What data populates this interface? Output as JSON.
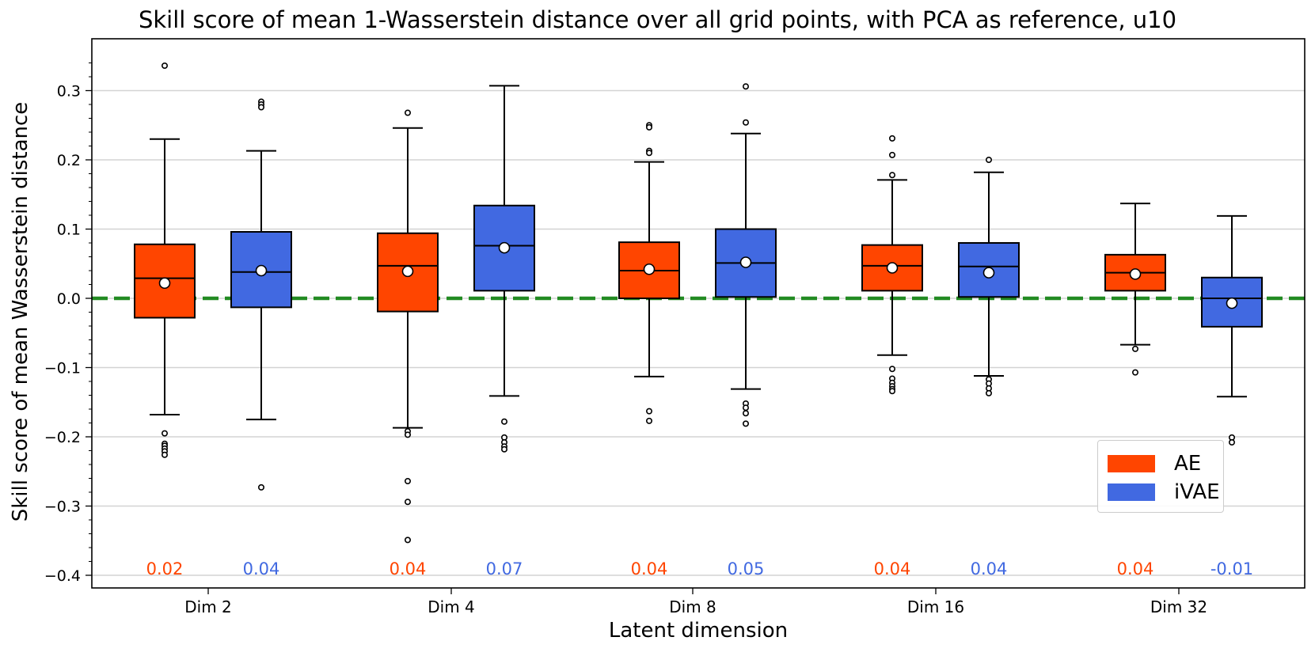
{
  "chart_data": {
    "type": "box",
    "title": "Skill score of mean 1-Wasserstein distance over all grid points, with PCA as reference, u10",
    "xlabel": "Latent dimension",
    "ylabel": "Skill score of mean Wasserstein distance",
    "ylim": [
      -0.415,
      0.37
    ],
    "yticks": [
      -0.4,
      -0.3,
      -0.2,
      -0.1,
      0.0,
      0.1,
      0.2,
      0.3
    ],
    "ytick_labels": [
      "−0.4",
      "−0.3",
      "−0.2",
      "−0.1",
      "0.0",
      "0.1",
      "0.2",
      "0.3"
    ],
    "categories": [
      "Dim 2",
      "Dim 4",
      "Dim 8",
      "Dim 16",
      "Dim 32"
    ],
    "grid": "horizontal",
    "reference_line": {
      "y": 0.0,
      "color": "#228b22",
      "style": "dashed"
    },
    "legend_position": "lower-right",
    "series": [
      {
        "name": "AE",
        "color": "#ff4500",
        "boxes": [
          {
            "q1": -0.028,
            "median": 0.029,
            "q3": 0.078,
            "whisker_low": -0.168,
            "whisker_high": 0.23,
            "mean": 0.022,
            "outliers": [
              0.336,
              -0.195,
              -0.21,
              -0.213,
              -0.217,
              -0.221,
              -0.226
            ]
          },
          {
            "q1": -0.019,
            "median": 0.047,
            "q3": 0.094,
            "whisker_low": -0.187,
            "whisker_high": 0.246,
            "mean": 0.039,
            "outliers": [
              0.268,
              -0.192,
              -0.197,
              -0.264,
              -0.294,
              -0.349
            ]
          },
          {
            "q1": 0.0,
            "median": 0.04,
            "q3": 0.081,
            "whisker_low": -0.113,
            "whisker_high": 0.197,
            "mean": 0.042,
            "outliers": [
              0.25,
              0.247,
              0.213,
              0.21,
              -0.163,
              -0.177
            ]
          },
          {
            "q1": 0.011,
            "median": 0.047,
            "q3": 0.077,
            "whisker_low": -0.082,
            "whisker_high": 0.171,
            "mean": 0.044,
            "outliers": [
              0.231,
              0.207,
              0.178,
              -0.102,
              -0.116,
              -0.122,
              -0.127,
              -0.131,
              -0.134
            ]
          },
          {
            "q1": 0.011,
            "median": 0.037,
            "q3": 0.063,
            "whisker_low": -0.067,
            "whisker_high": 0.137,
            "mean": 0.035,
            "outliers": [
              -0.073,
              -0.107
            ]
          }
        ],
        "mean_labels": [
          "0.02",
          "0.04",
          "0.04",
          "0.04",
          "0.04"
        ]
      },
      {
        "name": "iVAE",
        "color": "#4169e1",
        "boxes": [
          {
            "q1": -0.013,
            "median": 0.038,
            "q3": 0.096,
            "whisker_low": -0.175,
            "whisker_high": 0.213,
            "mean": 0.04,
            "outliers": [
              0.284,
              0.28,
              0.276,
              -0.273
            ]
          },
          {
            "q1": 0.011,
            "median": 0.076,
            "q3": 0.134,
            "whisker_low": -0.141,
            "whisker_high": 0.307,
            "mean": 0.073,
            "outliers": [
              -0.178,
              -0.201,
              -0.208,
              -0.214,
              -0.218
            ]
          },
          {
            "q1": 0.002,
            "median": 0.051,
            "q3": 0.1,
            "whisker_low": -0.131,
            "whisker_high": 0.238,
            "mean": 0.052,
            "outliers": [
              0.306,
              0.254,
              -0.152,
              -0.158,
              -0.166,
              -0.181
            ]
          },
          {
            "q1": 0.002,
            "median": 0.046,
            "q3": 0.08,
            "whisker_low": -0.112,
            "whisker_high": 0.182,
            "mean": 0.037,
            "outliers": [
              0.2,
              -0.117,
              -0.123,
              -0.13,
              -0.137
            ]
          },
          {
            "q1": -0.041,
            "median": 0.0,
            "q3": 0.03,
            "whisker_low": -0.142,
            "whisker_high": 0.119,
            "mean": -0.007,
            "outliers": [
              -0.201,
              -0.208
            ]
          }
        ],
        "mean_labels": [
          "0.04",
          "0.07",
          "0.05",
          "0.04",
          "-0.01"
        ]
      }
    ]
  }
}
